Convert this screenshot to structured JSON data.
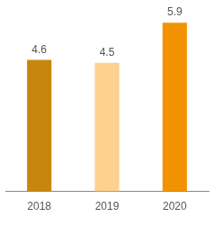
{
  "chart_data": {
    "type": "bar",
    "categories": [
      "2018",
      "2019",
      "2020"
    ],
    "values": [
      4.6,
      4.5,
      5.9
    ],
    "colors": [
      "#c8860d",
      "#fdd18f",
      "#f39200"
    ],
    "ylim": [
      0,
      6
    ],
    "grid": false,
    "data_labels": true,
    "tick_labels": "x"
  }
}
